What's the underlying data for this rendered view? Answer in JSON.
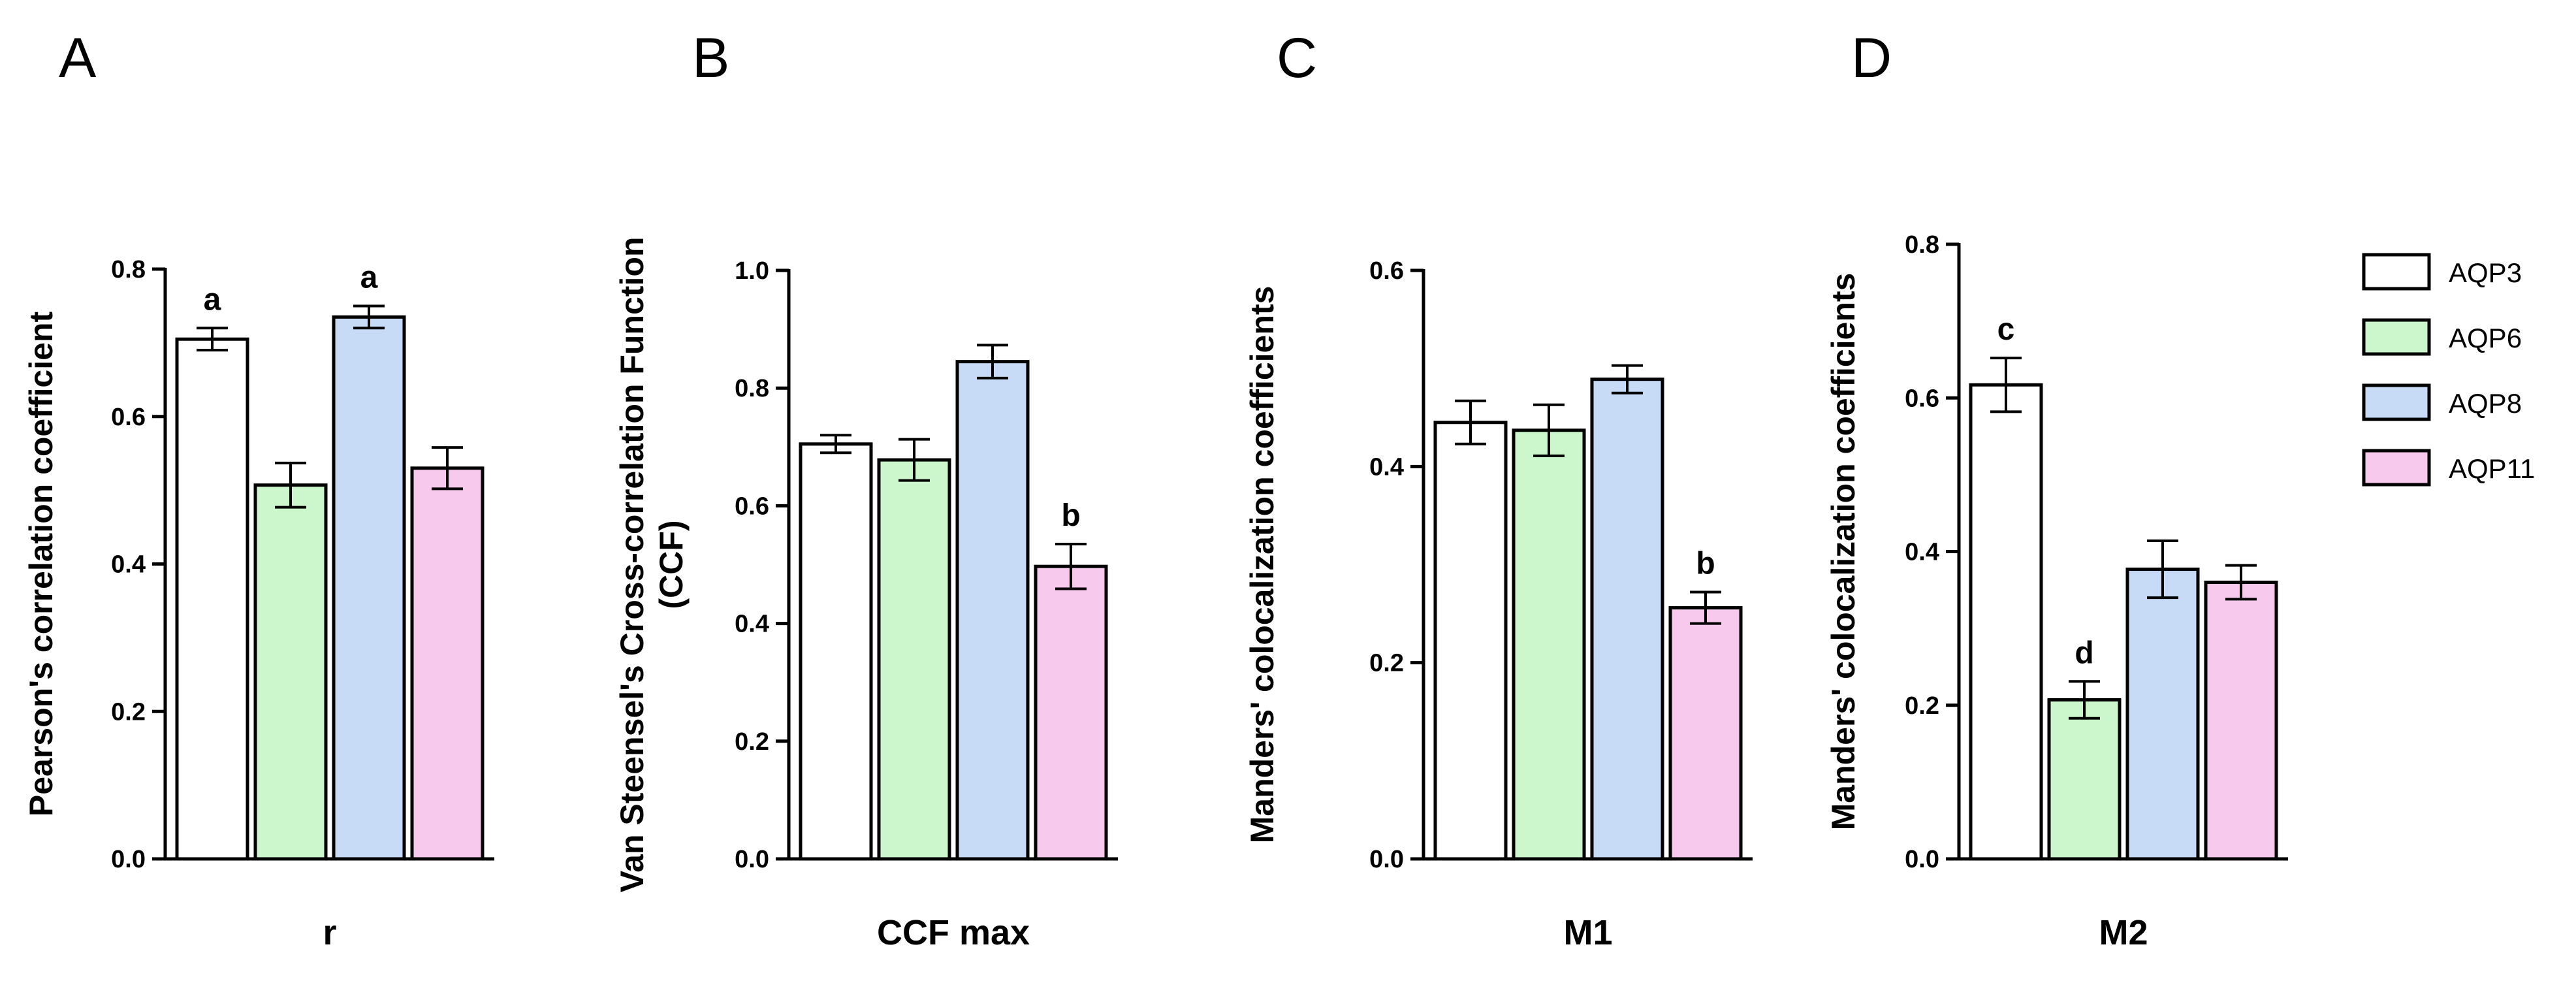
{
  "chart_data": [
    {
      "type": "bar",
      "panel": "A",
      "xlabel": "r",
      "ylabel": "Pearson's correlation coefficient",
      "ylim": [
        0,
        0.8
      ],
      "yticks": [
        0.0,
        0.2,
        0.4,
        0.6,
        0.8
      ],
      "ytick_labels": [
        "0.0",
        "0.2",
        "0.4",
        "0.6",
        "0.8"
      ],
      "series": [
        {
          "name": "AQP3",
          "value": 0.705,
          "error": 0.015,
          "label": "a"
        },
        {
          "name": "AQP6",
          "value": 0.507,
          "error": 0.03,
          "label": ""
        },
        {
          "name": "AQP8",
          "value": 0.735,
          "error": 0.015,
          "label": "a"
        },
        {
          "name": "AQP11",
          "value": 0.53,
          "error": 0.028,
          "label": ""
        }
      ]
    },
    {
      "type": "bar",
      "panel": "B",
      "xlabel": "CCF max",
      "ylabel": "Van Steensel's Cross-correlation Function",
      "ylabel2": "(CCF)",
      "ylim": [
        0,
        1.0
      ],
      "yticks": [
        0.0,
        0.2,
        0.4,
        0.6,
        0.8,
        1.0
      ],
      "ytick_labels": [
        "0.0",
        "0.2",
        "0.4",
        "0.6",
        "0.8",
        "1.0"
      ],
      "series": [
        {
          "name": "AQP3",
          "value": 0.705,
          "error": 0.015,
          "label": ""
        },
        {
          "name": "AQP6",
          "value": 0.678,
          "error": 0.035,
          "label": ""
        },
        {
          "name": "AQP8",
          "value": 0.845,
          "error": 0.028,
          "label": ""
        },
        {
          "name": "AQP11",
          "value": 0.497,
          "error": 0.038,
          "label": "b"
        }
      ]
    },
    {
      "type": "bar",
      "panel": "C",
      "xlabel": "M1",
      "ylabel": "Manders' colocalization coefficients",
      "ylim": [
        0,
        0.6
      ],
      "yticks": [
        0.0,
        0.2,
        0.4,
        0.6
      ],
      "ytick_labels": [
        "0.0",
        "0.2",
        "0.4",
        "0.6"
      ],
      "series": [
        {
          "name": "AQP3",
          "value": 0.445,
          "error": 0.022,
          "label": ""
        },
        {
          "name": "AQP6",
          "value": 0.437,
          "error": 0.026,
          "label": ""
        },
        {
          "name": "AQP8",
          "value": 0.489,
          "error": 0.014,
          "label": ""
        },
        {
          "name": "AQP11",
          "value": 0.256,
          "error": 0.016,
          "label": "b"
        }
      ]
    },
    {
      "type": "bar",
      "panel": "D",
      "xlabel": "M2",
      "ylabel": "Manders' colocalization coefficients",
      "ylim": [
        0,
        0.8
      ],
      "yticks": [
        0.0,
        0.2,
        0.4,
        0.6,
        0.8
      ],
      "ytick_labels": [
        "0.0",
        "0.2",
        "0.4",
        "0.6",
        "0.8"
      ],
      "series": [
        {
          "name": "AQP3",
          "value": 0.617,
          "error": 0.035,
          "label": "c"
        },
        {
          "name": "AQP6",
          "value": 0.207,
          "error": 0.024,
          "label": "d"
        },
        {
          "name": "AQP8",
          "value": 0.377,
          "error": 0.037,
          "label": ""
        },
        {
          "name": "AQP11",
          "value": 0.36,
          "error": 0.022,
          "label": ""
        }
      ]
    }
  ],
  "legend": {
    "placement": "right",
    "entries": [
      {
        "name": "AQP3",
        "color": "#ffffff"
      },
      {
        "name": "AQP6",
        "color": "#ccf7cc"
      },
      {
        "name": "AQP8",
        "color": "#c7dbf6"
      },
      {
        "name": "AQP11",
        "color": "#f7c9ec"
      }
    ]
  },
  "colors": {
    "AQP3": "#ffffff",
    "AQP6": "#ccf7cc",
    "AQP8": "#c7dbf6",
    "AQP11": "#f7c9ec",
    "outline": "#000000"
  }
}
